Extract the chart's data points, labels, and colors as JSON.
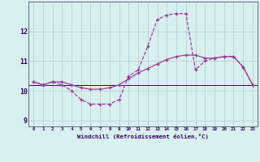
{
  "xlabel": "Windchill (Refroidissement éolien,°C)",
  "hours": [
    0,
    1,
    2,
    3,
    4,
    5,
    6,
    7,
    8,
    9,
    10,
    11,
    12,
    13,
    14,
    15,
    16,
    17,
    18,
    19,
    20,
    21,
    22,
    23
  ],
  "series1": [
    10.3,
    10.2,
    10.3,
    10.2,
    10.0,
    9.7,
    9.55,
    9.55,
    9.55,
    9.7,
    10.5,
    10.7,
    11.5,
    12.4,
    12.55,
    12.6,
    12.6,
    10.7,
    11.0,
    11.1,
    11.15,
    11.15,
    10.8,
    10.2
  ],
  "series2": [
    10.3,
    10.2,
    10.3,
    10.3,
    10.2,
    10.1,
    10.05,
    10.05,
    10.1,
    10.2,
    10.4,
    10.6,
    10.75,
    10.9,
    11.05,
    11.15,
    11.2,
    11.2,
    11.1,
    11.1,
    11.15,
    11.15,
    10.8,
    10.2
  ],
  "hline_y": 10.2,
  "line_color": "#993399",
  "hline_color": "#330066",
  "bg_color": "#d8f0f0",
  "grid_color": "#b8d0d0",
  "axis_color": "#330066",
  "spine_color": "#666688",
  "ylim": [
    8.8,
    13.0
  ],
  "xlim": [
    -0.5,
    23.5
  ],
  "yticks": [
    9,
    10,
    11,
    12
  ],
  "xticks": [
    0,
    1,
    2,
    3,
    4,
    5,
    6,
    7,
    8,
    9,
    10,
    11,
    12,
    13,
    14,
    15,
    16,
    17,
    18,
    19,
    20,
    21,
    22,
    23
  ]
}
